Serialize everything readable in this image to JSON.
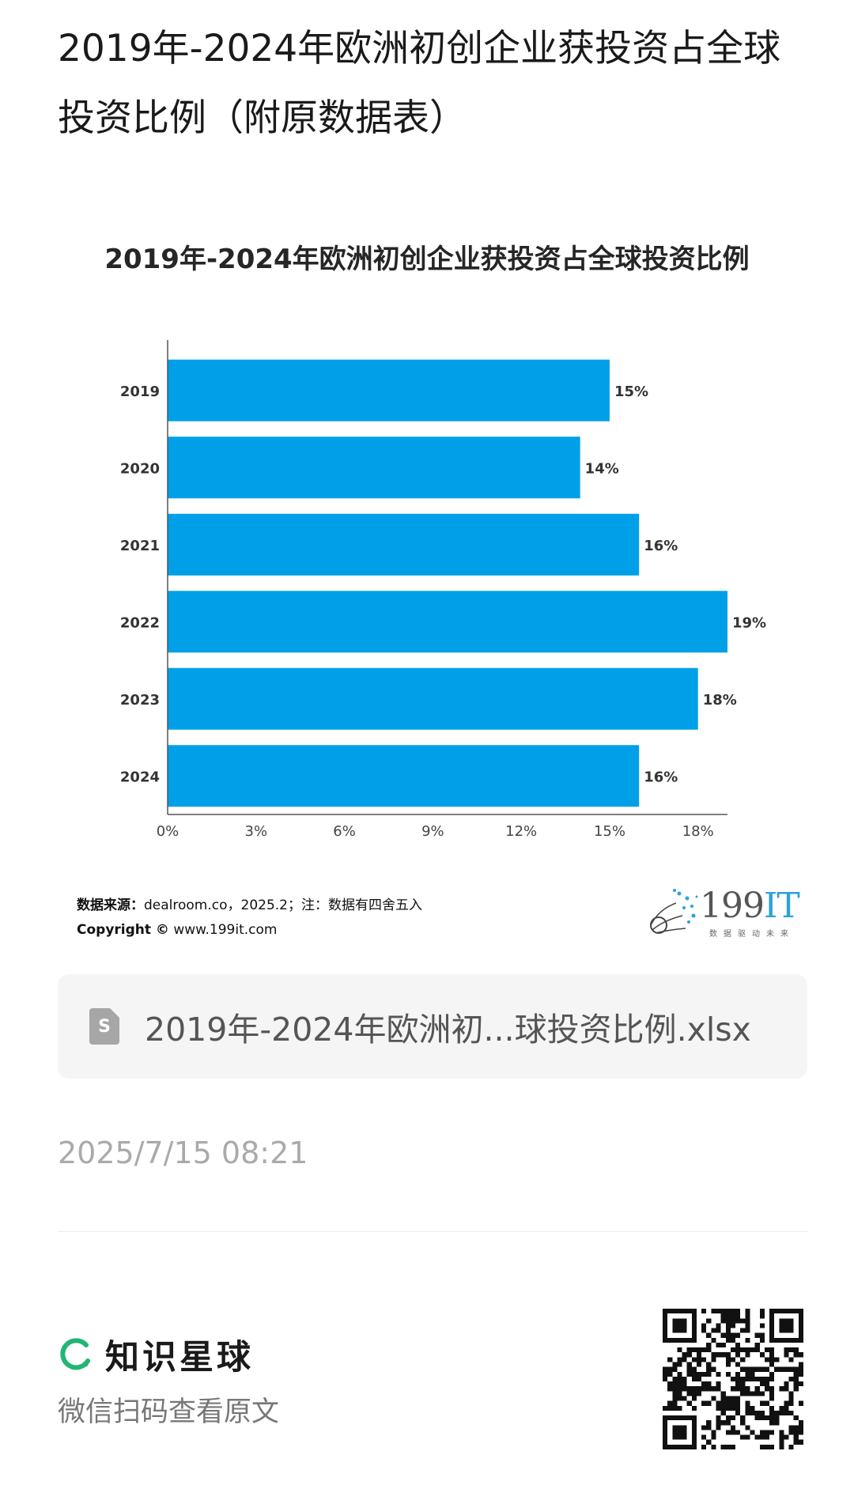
{
  "post": {
    "title": "2019年-2024年欧洲初创企业获投资占全球投资比例（附原数据表）"
  },
  "chart_data": {
    "type": "bar",
    "orientation": "horizontal",
    "title": "2019年-2024年欧洲初创企业获投资占全球投资比例",
    "categories": [
      "2019",
      "2020",
      "2021",
      "2022",
      "2023",
      "2024"
    ],
    "values": [
      15,
      14,
      16,
      19,
      18,
      16
    ],
    "value_labels": [
      "15%",
      "14%",
      "16%",
      "19%",
      "18%",
      "16%"
    ],
    "xticks": [
      "0%",
      "3%",
      "6%",
      "9%",
      "12%",
      "15%",
      "18%"
    ],
    "xlim": [
      0,
      19
    ],
    "bar_color": "#00a0e9"
  },
  "source": {
    "label": "数据来源：",
    "text": "dealroom.co，2025.2；注：数据有四舍五入",
    "copyright_label": "Copyright ©",
    "copyright_text": "www.199it.com"
  },
  "logo": {
    "main": "199",
    "accent": "IT",
    "tagline": "数据驱动未来"
  },
  "file": {
    "icon_letter": "S",
    "name": "2019年-2024年欧洲初...球投资比例.xlsx"
  },
  "timestamp": "2025/7/15 08:21",
  "brand": {
    "name": "知识星球",
    "color": "#22b573"
  },
  "scan_hint": "微信扫码查看原文"
}
